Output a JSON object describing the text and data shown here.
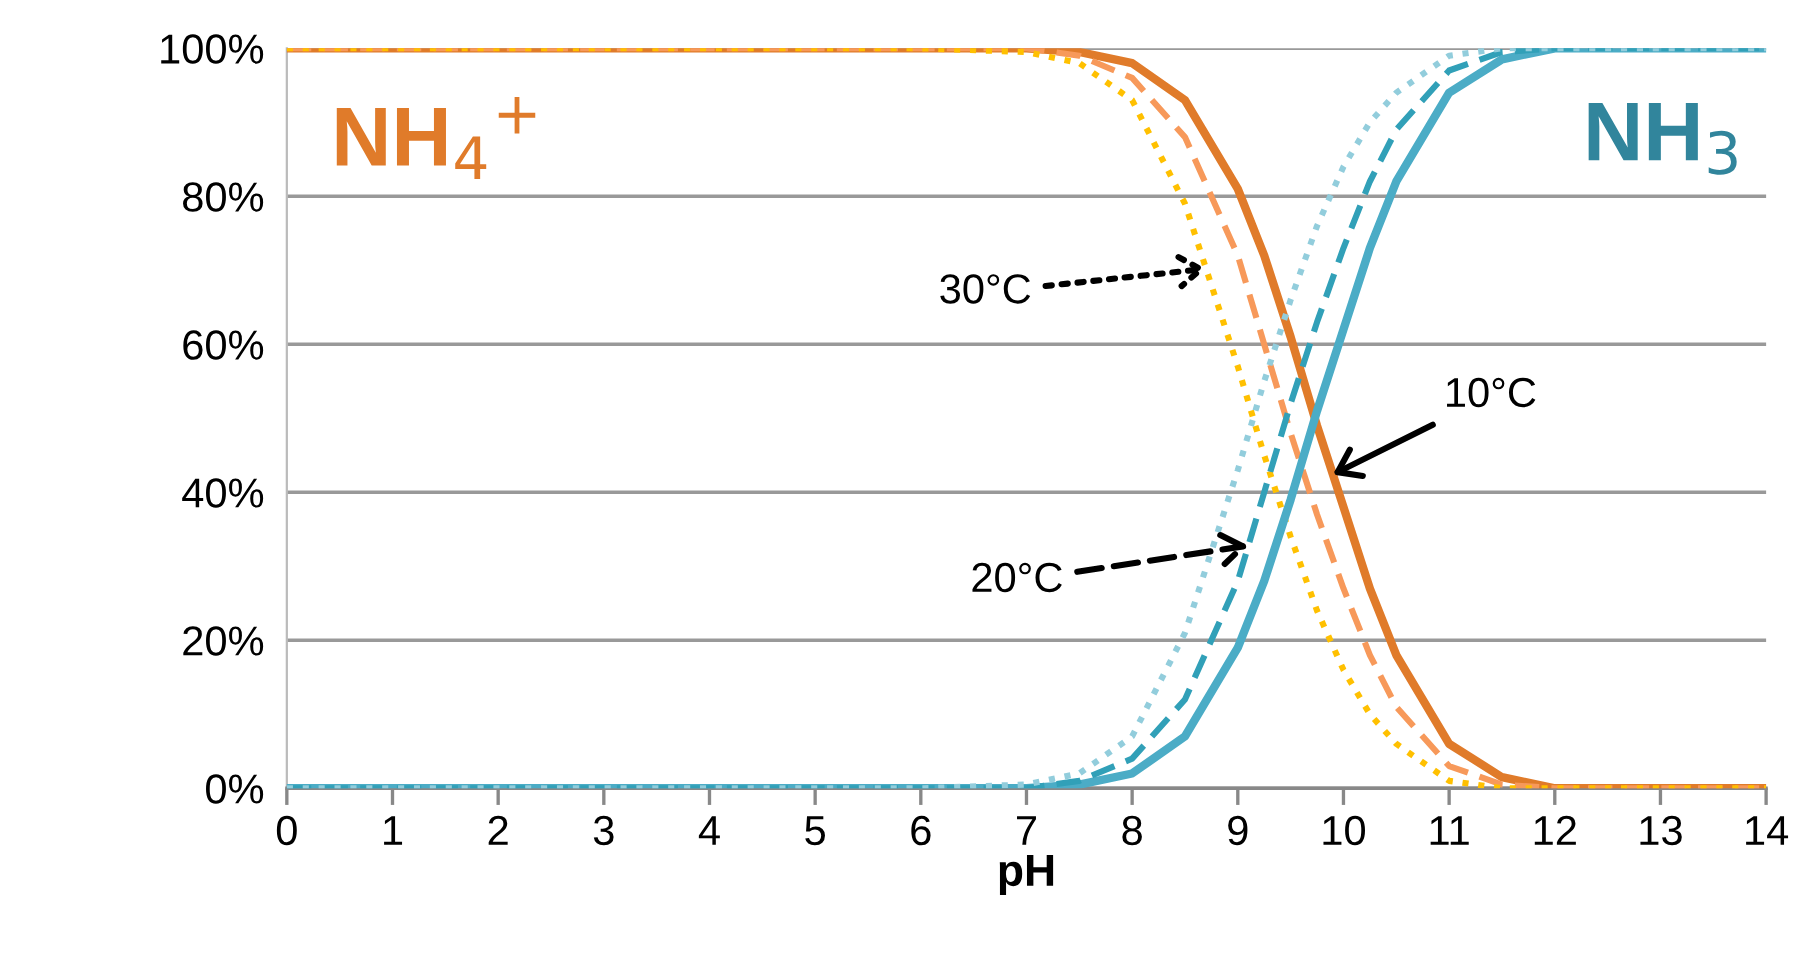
{
  "chart_data": {
    "type": "line",
    "xlabel": "pH",
    "x": [
      0,
      1,
      2,
      3,
      4,
      5,
      6,
      7,
      7.5,
      8,
      8.5,
      9,
      9.25,
      9.5,
      9.75,
      10,
      10.25,
      10.5,
      11,
      11.5,
      12,
      13,
      14
    ],
    "series": [
      {
        "color": "#e07b2a",
        "line_style": "solid",
        "values": [
          100,
          100,
          100,
          100,
          100,
          100,
          100,
          100,
          99.5,
          98,
          93,
          81,
          72,
          61,
          49,
          38,
          27,
          18,
          6,
          1.5,
          0,
          0,
          0
        ]
      },
      {
        "color": "#f7995a",
        "line_style": "dashed",
        "values": [
          100,
          100,
          100,
          100,
          100,
          100,
          100,
          100,
          99,
          96,
          88,
          72,
          60,
          48,
          37,
          27,
          18,
          11,
          3,
          0.5,
          0,
          0,
          0
        ]
      },
      {
        "color": "#ffc000",
        "line_style": "dotted",
        "values": [
          100,
          100,
          100,
          100,
          100,
          100,
          100,
          99.5,
          98,
          93,
          79,
          57,
          45,
          34,
          24,
          16,
          10,
          6,
          1,
          0,
          0,
          0,
          0
        ]
      },
      {
        "color": "#4bacc6",
        "line_style": "solid",
        "values": [
          0,
          0,
          0,
          0,
          0,
          0,
          0,
          0,
          0.5,
          2,
          7,
          19,
          28,
          39,
          51,
          62,
          73,
          82,
          94,
          98.5,
          100,
          100,
          100
        ]
      },
      {
        "color": "#31a0b8",
        "line_style": "dashed",
        "values": [
          0,
          0,
          0,
          0,
          0,
          0,
          0,
          0,
          1,
          4,
          12,
          28,
          40,
          52,
          63,
          73,
          82,
          89,
          97,
          99.5,
          100,
          100,
          100
        ]
      },
      {
        "color": "#92cddc",
        "line_style": "dotted",
        "values": [
          0,
          0,
          0,
          0,
          0,
          0,
          0,
          0.5,
          2,
          7,
          21,
          43,
          55,
          66,
          76,
          84,
          90,
          94,
          99,
          100,
          100,
          100,
          100
        ]
      }
    ],
    "annotations": [
      {
        "text": "30°C",
        "x": 8.7,
        "y": 70.2
      },
      {
        "text": "20°C",
        "x": 9.1,
        "y": 32.8
      },
      {
        "text": "10°C",
        "x": 9.9,
        "y": 42.4
      },
      "NH$_{4}$$^{+}$",
      "NH$_{3}$"
    ],
    "xlim": [
      0,
      14
    ],
    "xticks": [
      0,
      1,
      2,
      3,
      4,
      5,
      6,
      7,
      8,
      9,
      10,
      11,
      12,
      13,
      14
    ],
    "ylim": [
      0,
      100
    ],
    "yticks": [
      {
        "value": 0,
        "label": "0%"
      },
      {
        "value": 20,
        "label": "20%"
      },
      {
        "value": 40,
        "label": "40%"
      },
      {
        "value": 60,
        "label": "60%"
      },
      {
        "value": 80,
        "label": "80%"
      },
      {
        "value": 100,
        "label": "100%"
      }
    ],
    "grid": "y",
    "legend": false,
    "marker": "none"
  }
}
